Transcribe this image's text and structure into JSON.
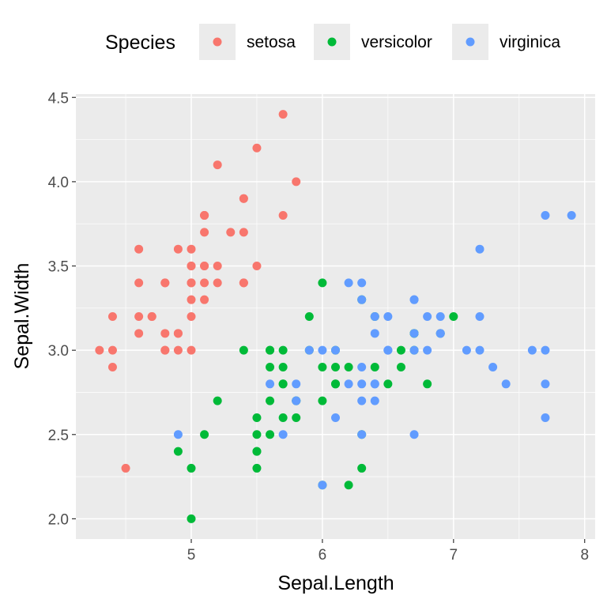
{
  "chart_data": {
    "type": "scatter",
    "xlabel": "Sepal.Length",
    "ylabel": "Sepal.Width",
    "xlim": [
      4.12,
      8.08
    ],
    "ylim": [
      1.88,
      4.52
    ],
    "xticks": [
      "5",
      "6",
      "7",
      "8"
    ],
    "yticks": [
      "2.0",
      "2.5",
      "3.0",
      "3.5",
      "4.0",
      "4.5"
    ],
    "grid": true,
    "legend": {
      "title": "Species",
      "placement": "top"
    },
    "series": [
      {
        "name": "setosa",
        "color": "#F8766D",
        "points": [
          [
            5.1,
            3.5
          ],
          [
            4.9,
            3.0
          ],
          [
            4.7,
            3.2
          ],
          [
            4.6,
            3.1
          ],
          [
            5.0,
            3.6
          ],
          [
            5.4,
            3.9
          ],
          [
            4.6,
            3.4
          ],
          [
            5.0,
            3.4
          ],
          [
            4.4,
            2.9
          ],
          [
            4.9,
            3.1
          ],
          [
            5.4,
            3.7
          ],
          [
            4.8,
            3.4
          ],
          [
            4.8,
            3.0
          ],
          [
            4.3,
            3.0
          ],
          [
            5.8,
            4.0
          ],
          [
            5.7,
            4.4
          ],
          [
            5.4,
            3.9
          ],
          [
            5.1,
            3.5
          ],
          [
            5.7,
            3.8
          ],
          [
            5.1,
            3.8
          ],
          [
            5.4,
            3.4
          ],
          [
            5.1,
            3.7
          ],
          [
            4.6,
            3.6
          ],
          [
            5.1,
            3.3
          ],
          [
            4.8,
            3.4
          ],
          [
            5.0,
            3.0
          ],
          [
            5.0,
            3.4
          ],
          [
            5.2,
            3.5
          ],
          [
            5.2,
            3.4
          ],
          [
            4.7,
            3.2
          ],
          [
            4.8,
            3.1
          ],
          [
            5.4,
            3.4
          ],
          [
            5.2,
            4.1
          ],
          [
            5.5,
            4.2
          ],
          [
            4.9,
            3.1
          ],
          [
            5.0,
            3.2
          ],
          [
            5.5,
            3.5
          ],
          [
            4.9,
            3.6
          ],
          [
            4.4,
            3.0
          ],
          [
            5.1,
            3.4
          ],
          [
            5.0,
            3.5
          ],
          [
            4.5,
            2.3
          ],
          [
            4.4,
            3.2
          ],
          [
            5.0,
            3.5
          ],
          [
            5.1,
            3.8
          ],
          [
            4.8,
            3.0
          ],
          [
            5.1,
            3.8
          ],
          [
            4.6,
            3.2
          ],
          [
            5.3,
            3.7
          ],
          [
            5.0,
            3.3
          ]
        ]
      },
      {
        "name": "versicolor",
        "color": "#00BA38",
        "points": [
          [
            7.0,
            3.2
          ],
          [
            6.4,
            3.2
          ],
          [
            6.9,
            3.1
          ],
          [
            5.5,
            2.3
          ],
          [
            6.5,
            2.8
          ],
          [
            5.7,
            2.8
          ],
          [
            6.3,
            3.3
          ],
          [
            4.9,
            2.4
          ],
          [
            6.6,
            2.9
          ],
          [
            5.2,
            2.7
          ],
          [
            5.0,
            2.0
          ],
          [
            5.9,
            3.0
          ],
          [
            6.0,
            2.2
          ],
          [
            6.1,
            2.9
          ],
          [
            5.6,
            2.9
          ],
          [
            6.7,
            3.1
          ],
          [
            5.6,
            3.0
          ],
          [
            5.8,
            2.7
          ],
          [
            6.2,
            2.2
          ],
          [
            5.6,
            2.5
          ],
          [
            5.9,
            3.2
          ],
          [
            6.1,
            2.8
          ],
          [
            6.3,
            2.5
          ],
          [
            6.1,
            2.8
          ],
          [
            6.4,
            2.9
          ],
          [
            6.6,
            3.0
          ],
          [
            6.8,
            2.8
          ],
          [
            6.7,
            3.0
          ],
          [
            6.0,
            2.9
          ],
          [
            5.7,
            2.6
          ],
          [
            5.5,
            2.4
          ],
          [
            5.5,
            2.4
          ],
          [
            5.8,
            2.7
          ],
          [
            6.0,
            2.7
          ],
          [
            5.4,
            3.0
          ],
          [
            6.0,
            3.4
          ],
          [
            6.7,
            3.1
          ],
          [
            6.3,
            2.3
          ],
          [
            5.6,
            3.0
          ],
          [
            5.5,
            2.5
          ],
          [
            5.5,
            2.6
          ],
          [
            6.1,
            3.0
          ],
          [
            5.8,
            2.6
          ],
          [
            5.0,
            2.3
          ],
          [
            5.6,
            2.7
          ],
          [
            5.7,
            3.0
          ],
          [
            5.7,
            2.9
          ],
          [
            6.2,
            2.9
          ],
          [
            5.1,
            2.5
          ],
          [
            5.7,
            2.8
          ]
        ]
      },
      {
        "name": "virginica",
        "color": "#619CFF",
        "points": [
          [
            6.3,
            3.3
          ],
          [
            5.8,
            2.7
          ],
          [
            7.1,
            3.0
          ],
          [
            6.3,
            2.9
          ],
          [
            6.5,
            3.0
          ],
          [
            7.6,
            3.0
          ],
          [
            4.9,
            2.5
          ],
          [
            7.3,
            2.9
          ],
          [
            6.7,
            2.5
          ],
          [
            7.2,
            3.6
          ],
          [
            6.5,
            3.2
          ],
          [
            6.4,
            2.7
          ],
          [
            6.8,
            3.0
          ],
          [
            5.7,
            2.5
          ],
          [
            5.8,
            2.8
          ],
          [
            6.4,
            3.2
          ],
          [
            6.5,
            3.0
          ],
          [
            7.7,
            3.8
          ],
          [
            7.7,
            2.6
          ],
          [
            6.0,
            2.2
          ],
          [
            6.9,
            3.2
          ],
          [
            5.6,
            2.8
          ],
          [
            7.7,
            2.8
          ],
          [
            6.3,
            2.7
          ],
          [
            6.7,
            3.3
          ],
          [
            7.2,
            3.2
          ],
          [
            6.2,
            2.8
          ],
          [
            6.1,
            3.0
          ],
          [
            6.4,
            2.8
          ],
          [
            7.2,
            3.0
          ],
          [
            7.4,
            2.8
          ],
          [
            7.9,
            3.8
          ],
          [
            6.4,
            2.8
          ],
          [
            6.3,
            2.8
          ],
          [
            6.1,
            2.6
          ],
          [
            7.7,
            3.0
          ],
          [
            6.3,
            3.4
          ],
          [
            6.4,
            3.1
          ],
          [
            6.0,
            3.0
          ],
          [
            6.9,
            3.1
          ],
          [
            6.7,
            3.1
          ],
          [
            6.9,
            3.1
          ],
          [
            5.8,
            2.7
          ],
          [
            6.8,
            3.2
          ],
          [
            6.7,
            3.3
          ],
          [
            6.7,
            3.0
          ],
          [
            6.3,
            2.5
          ],
          [
            6.5,
            3.0
          ],
          [
            6.2,
            3.4
          ],
          [
            5.9,
            3.0
          ]
        ]
      }
    ]
  }
}
